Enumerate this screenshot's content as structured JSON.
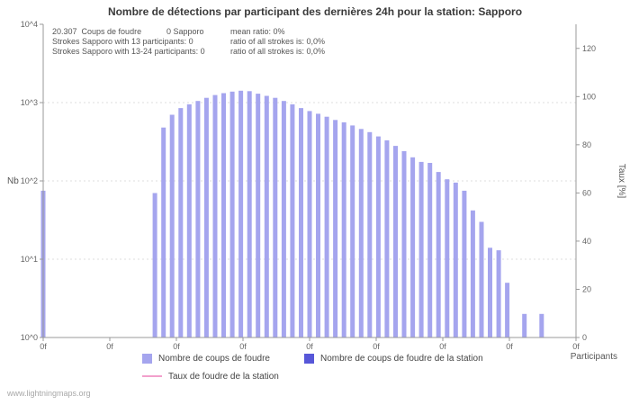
{
  "title": "Nombre de détections par participant des dernières 24h pour la station: Sapporo",
  "annotations": {
    "line1": {
      "a": "20.307  Coups de foudre",
      "b": "0 Sapporo",
      "c": "mean ratio: 0%"
    },
    "line2": {
      "a": "Strokes Sapporo with 13 participants: 0",
      "c": "ratio of all strokes is: 0,0%"
    },
    "line3": {
      "a": "Strokes Sapporo with 13-24 participants: 0",
      "c": "ratio of all strokes is: 0,0%"
    }
  },
  "chart_data": {
    "type": "bar",
    "title": "Nombre de détections par participant des dernières 24h pour la station: Sapporo",
    "xlabel": "Participants",
    "ylabel_left": "Nb",
    "ylabel_right": "Taux [%]",
    "y_left_scale": "log10",
    "y_left_log_range": [
      0,
      4
    ],
    "y_left_tick_labels": [
      "10^0",
      "10^1",
      "10^2",
      "10^3",
      "10^4"
    ],
    "y_right_range": [
      0,
      130
    ],
    "y_right_ticks": [
      0,
      20,
      40,
      60,
      80,
      100,
      120
    ],
    "x_range": [
      0,
      62
    ],
    "x_tick_labels": [
      "0f",
      "0f",
      "0f",
      "0f",
      "0f",
      "0f",
      "0f",
      "0f",
      "0f"
    ],
    "grid": "horizontal-dashed",
    "legend_position": "bottom",
    "series": [
      {
        "name": "Nombre de coups de foudre",
        "type": "bar",
        "color": "#a5a5ee",
        "points": [
          [
            0,
            75
          ],
          [
            13,
            70
          ],
          [
            14,
            480
          ],
          [
            15,
            700
          ],
          [
            16,
            850
          ],
          [
            17,
            950
          ],
          [
            18,
            1050
          ],
          [
            19,
            1150
          ],
          [
            20,
            1250
          ],
          [
            21,
            1320
          ],
          [
            22,
            1380
          ],
          [
            23,
            1420
          ],
          [
            24,
            1400
          ],
          [
            25,
            1300
          ],
          [
            26,
            1220
          ],
          [
            27,
            1150
          ],
          [
            28,
            1050
          ],
          [
            29,
            950
          ],
          [
            30,
            850
          ],
          [
            31,
            780
          ],
          [
            32,
            720
          ],
          [
            33,
            660
          ],
          [
            34,
            600
          ],
          [
            35,
            560
          ],
          [
            36,
            510
          ],
          [
            37,
            460
          ],
          [
            38,
            420
          ],
          [
            39,
            370
          ],
          [
            40,
            330
          ],
          [
            41,
            280
          ],
          [
            42,
            240
          ],
          [
            43,
            200
          ],
          [
            44,
            175
          ],
          [
            45,
            170
          ],
          [
            46,
            130
          ],
          [
            47,
            105
          ],
          [
            48,
            95
          ],
          [
            49,
            75
          ],
          [
            50,
            42
          ],
          [
            51,
            30
          ],
          [
            52,
            14
          ],
          [
            53,
            13
          ],
          [
            54,
            5
          ],
          [
            56,
            2
          ],
          [
            58,
            2
          ]
        ]
      },
      {
        "name": "Nombre de coups de foudre de la station",
        "type": "bar",
        "color": "#5757d8",
        "points": []
      },
      {
        "name": "Taux de foudre de la station",
        "type": "line",
        "color": "#f2a0cc",
        "points": []
      }
    ]
  },
  "legend": {
    "items": [
      {
        "label": "Nombre de coups de foudre",
        "color": "#a5a5ee",
        "shape": "square"
      },
      {
        "label": "Nombre de coups de foudre de la station",
        "color": "#5757d8",
        "shape": "square"
      },
      {
        "label": "Taux de foudre de la station",
        "color": "#f2a0cc",
        "shape": "line"
      }
    ]
  },
  "watermark": "www.lightningmaps.org"
}
